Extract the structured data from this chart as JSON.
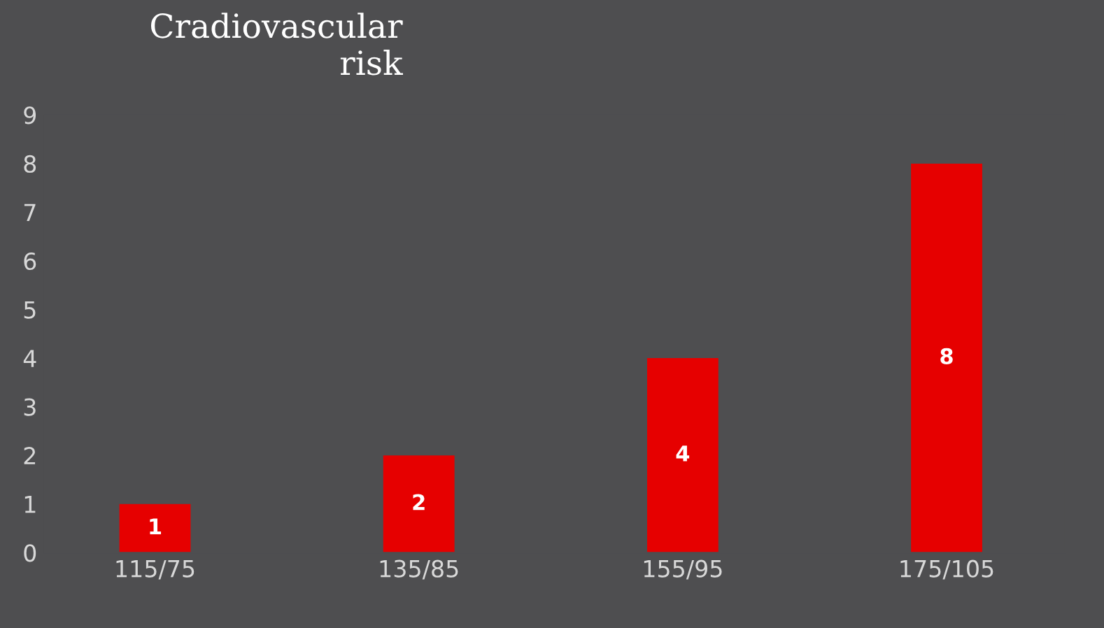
{
  "chart_data": {
    "type": "bar",
    "title": "Cradiovascular\nrisk",
    "categories": [
      "115/75",
      "135/85",
      "155/95",
      "175/105"
    ],
    "values": [
      1,
      2,
      4,
      8
    ],
    "color": "#e60000",
    "ylim": [
      0,
      9
    ],
    "yticks": [
      0,
      1,
      2,
      3,
      4,
      5,
      6,
      7,
      8,
      9
    ],
    "data_labels": true,
    "grid": false,
    "legend": false
  }
}
